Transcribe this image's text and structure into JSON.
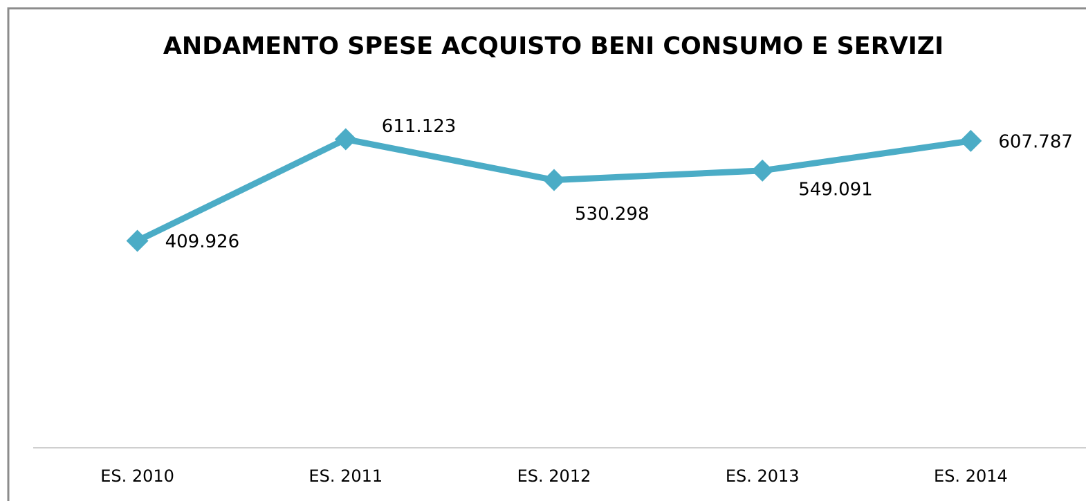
{
  "chart_data": {
    "type": "line",
    "title": "ANDAMENTO SPESE ACQUISTO BENI CONSUMO E SERVIZI",
    "categories": [
      "ES. 2010",
      "ES. 2011",
      "ES. 2012",
      "ES. 2013",
      "ES. 2014"
    ],
    "series": [
      {
        "name": null,
        "color": "#4bacc6",
        "values": [
          409926,
          611123,
          530298,
          549091,
          607787
        ],
        "value_labels": [
          "409.926",
          "611.123",
          "530.298",
          "549.091",
          "607.787"
        ]
      }
    ],
    "ylim": [
      0,
      800000
    ]
  }
}
